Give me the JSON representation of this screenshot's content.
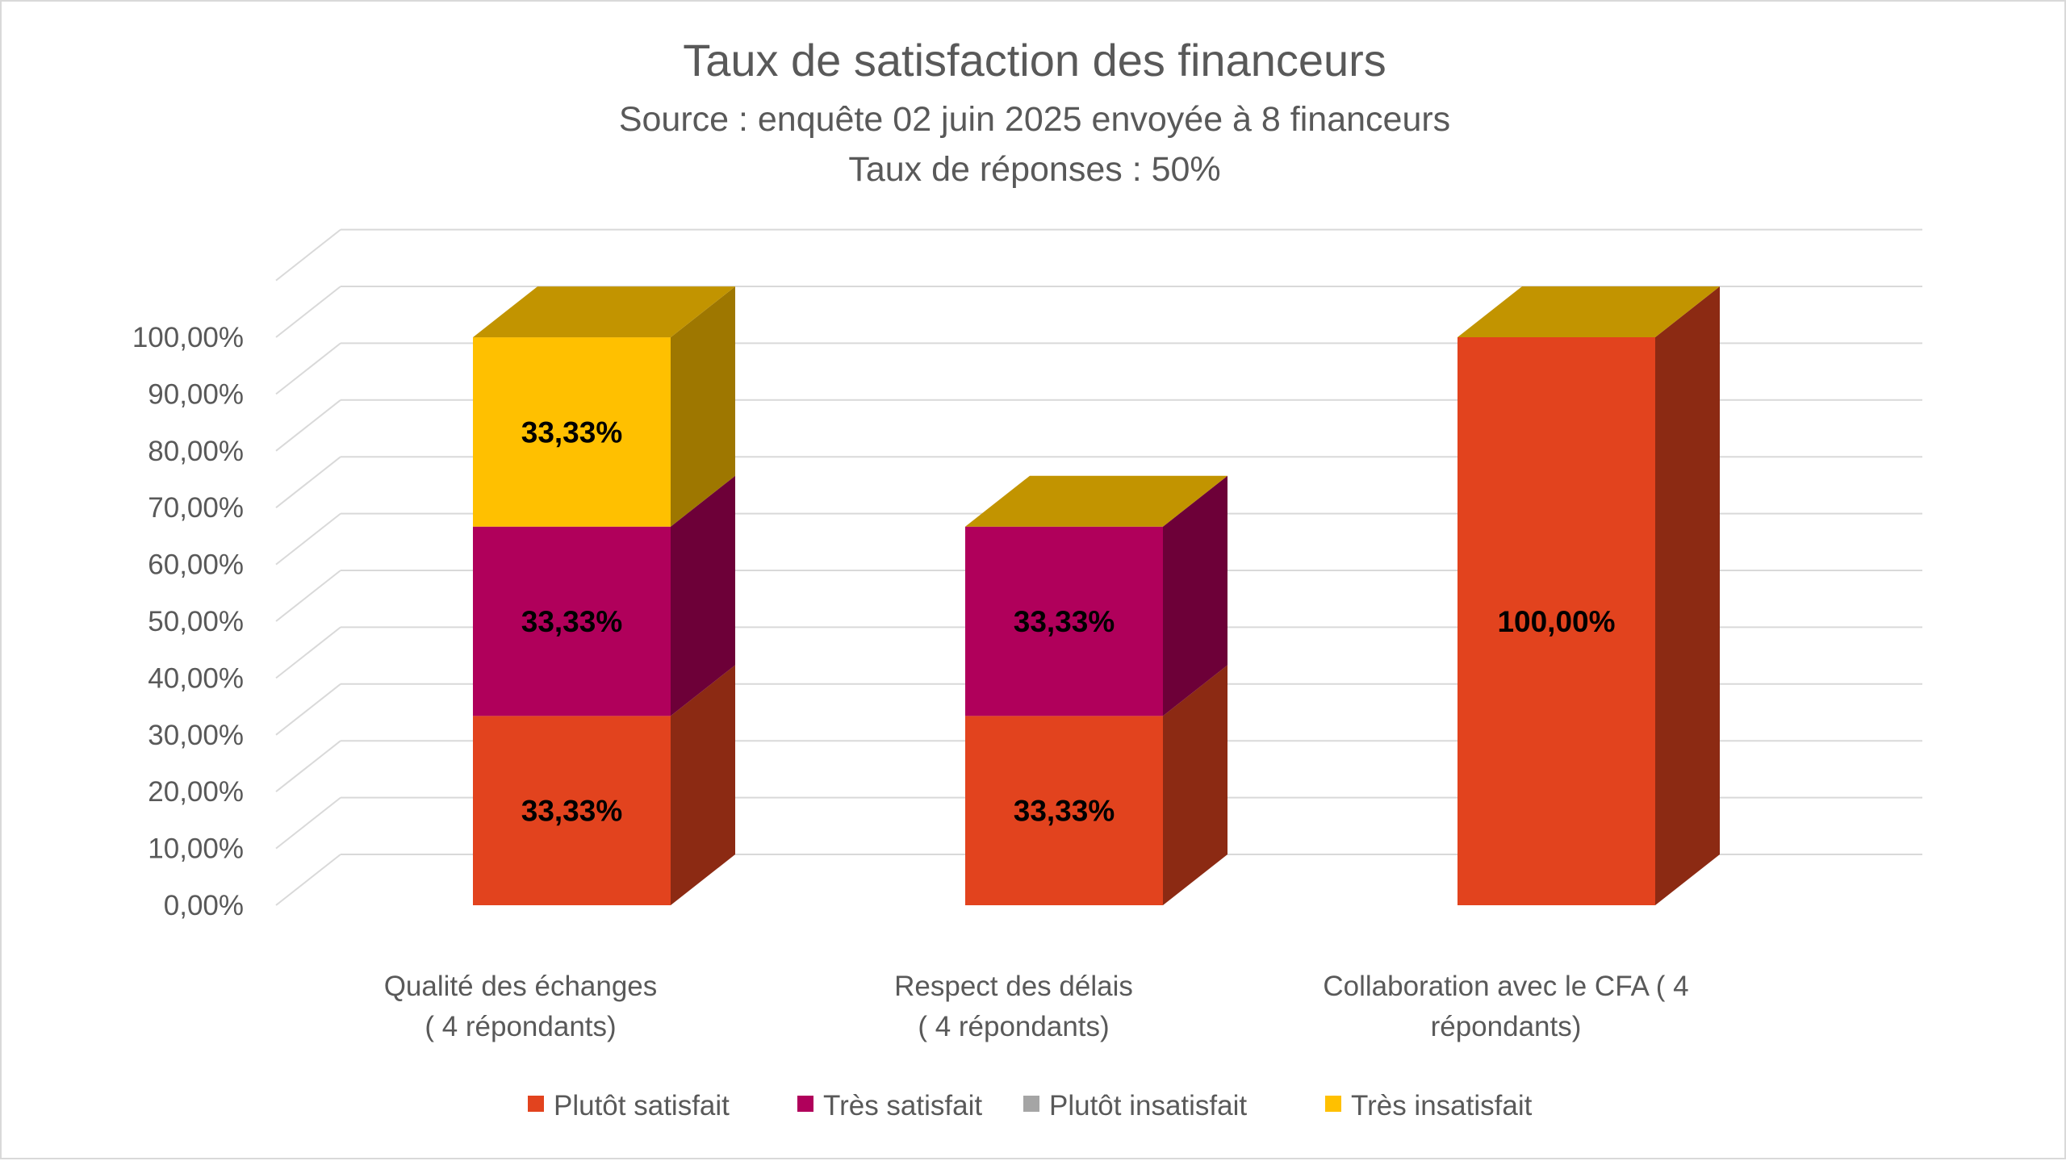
{
  "chart_data": {
    "type": "bar",
    "stacked": true,
    "three_d": true,
    "title": "Taux de satisfaction des financeurs",
    "subtitle_lines": [
      "Source : enquête 02 juin 2025 envoyée à 8 financeurs",
      "Taux de réponses : 50%"
    ],
    "categories": [
      [
        "Qualité des échanges",
        "(  4 répondants)"
      ],
      [
        "Respect des délais",
        "( 4 répondants)"
      ],
      [
        "Collaboration avec le CFA ( 4",
        "répondants)"
      ]
    ],
    "series": [
      {
        "name": "Plutôt satisfait",
        "color": "#E2431E",
        "values": [
          33.33,
          33.33,
          100
        ],
        "labels": [
          "33,33%",
          "33,33%",
          "100,00%"
        ]
      },
      {
        "name": "Très satisfait",
        "color": "#B0005B",
        "values": [
          33.33,
          33.33,
          0
        ],
        "labels": [
          "33,33%",
          "33,33%",
          ""
        ]
      },
      {
        "name": "Plutôt insatisfait",
        "color": "#A5A5A5",
        "values": [
          0,
          0,
          0
        ],
        "labels": [
          "",
          "",
          ""
        ]
      },
      {
        "name": "Très insatisfait",
        "color": "#FFC000",
        "values": [
          33.33,
          0,
          0
        ],
        "labels": [
          "33,33%",
          "",
          ""
        ]
      }
    ],
    "top_face_color": "#C29400",
    "ylim": [
      0,
      100
    ],
    "yticks": [
      0,
      10,
      20,
      30,
      40,
      50,
      60,
      70,
      80,
      90,
      100
    ],
    "ytick_labels": [
      "0,00%",
      "10,00%",
      "20,00%",
      "30,00%",
      "40,00%",
      "50,00%",
      "60,00%",
      "70,00%",
      "80,00%",
      "90,00%",
      "100,00%"
    ],
    "xlabel": "",
    "ylabel": "",
    "grid": true,
    "legend_position": "bottom"
  }
}
